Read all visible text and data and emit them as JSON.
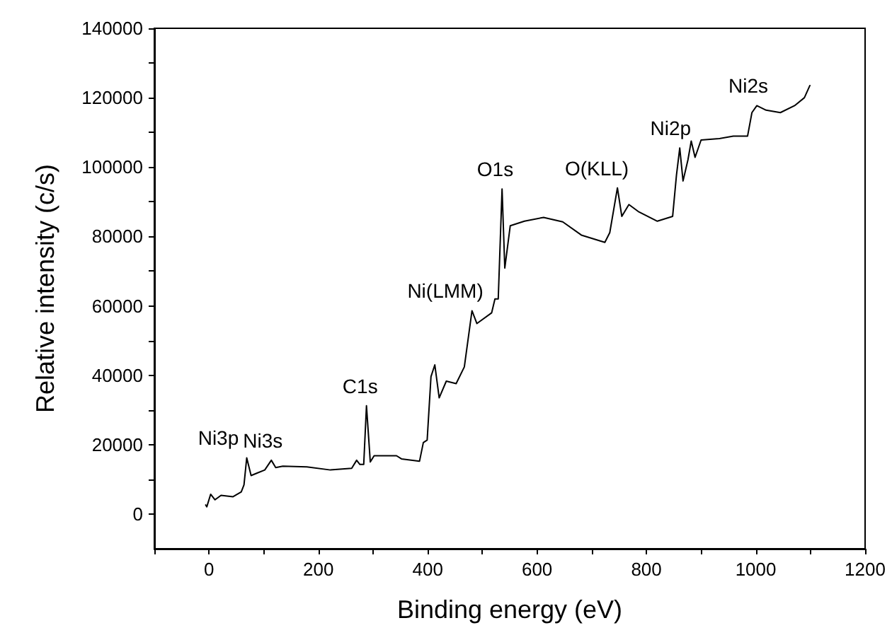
{
  "chart_data": {
    "type": "line",
    "xlabel": "Binding energy (eV)",
    "ylabel": "Relative intensity (c/s)",
    "x": [
      -6,
      -4,
      3,
      11,
      22,
      44,
      59,
      64,
      69,
      77,
      88,
      102,
      114,
      122,
      135,
      179,
      222,
      261,
      270,
      276,
      283,
      288,
      295,
      302,
      343,
      352,
      385,
      392,
      399,
      406,
      413,
      421,
      434,
      452,
      467,
      481,
      490,
      517,
      523,
      529,
      536,
      541,
      551,
      577,
      612,
      647,
      681,
      724,
      733,
      747,
      755,
      768,
      785,
      820,
      848,
      855,
      861,
      867,
      876,
      882,
      889,
      900,
      933,
      959,
      985,
      993,
      1002,
      1019,
      1045,
      1071,
      1089,
      1099
    ],
    "series": [
      {
        "color": "#000000",
        "values": [
          2600,
          2100,
          5700,
          4100,
          5400,
          5000,
          6400,
          8400,
          16200,
          11100,
          11800,
          12700,
          15500,
          13400,
          13800,
          13600,
          12700,
          13200,
          15500,
          14300,
          14300,
          31200,
          15000,
          16800,
          16800,
          15900,
          15200,
          20600,
          21300,
          39600,
          43000,
          33500,
          38300,
          37600,
          42400,
          58600,
          54900,
          58000,
          62000,
          62000,
          93700,
          70900,
          83100,
          84400,
          85500,
          84200,
          80400,
          78300,
          81100,
          94000,
          85800,
          89200,
          87200,
          84400,
          85800,
          97700,
          105500,
          96000,
          102100,
          107500,
          102800,
          107800,
          108200,
          108900,
          108900,
          115700,
          117700,
          116400,
          115700,
          117700,
          120000,
          123500
        ]
      }
    ],
    "xlim": [
      -100,
      1200
    ],
    "xticks": [
      {
        "value": -100,
        "label": null
      },
      0,
      {
        "value": 100,
        "label": null
      },
      200,
      {
        "value": 300,
        "label": null
      },
      400,
      {
        "value": 500,
        "label": null
      },
      600,
      {
        "value": 700,
        "label": null
      },
      800,
      {
        "value": 900,
        "label": null
      },
      1000,
      {
        "value": 1100,
        "label": null
      },
      1200
    ],
    "ylim": [
      -10000,
      140000
    ],
    "yticks": [
      0,
      {
        "value": 10000,
        "label": null
      },
      20000,
      {
        "value": 30000,
        "label": null
      },
      40000,
      {
        "value": 50000,
        "label": null
      },
      60000,
      {
        "value": 70000,
        "label": null
      },
      80000,
      {
        "value": 90000,
        "label": null
      },
      100000,
      {
        "value": 110000,
        "label": null
      },
      120000,
      {
        "value": 130000,
        "label": null
      },
      140000
    ],
    "annotations": [
      {
        "text": "Ni3p",
        "x": 69,
        "y": 16200
      },
      {
        "text": "Ni3s",
        "x": 114,
        "y": 15500
      },
      {
        "text": "C1s",
        "x": 288,
        "y": 31200
      },
      {
        "text": "Ni(LMM)",
        "x": 481,
        "y": 58600
      },
      {
        "text": "O1s",
        "x": 536,
        "y": 93700
      },
      {
        "text": "O(KLL)",
        "x": 747,
        "y": 94000
      },
      {
        "text": "Ni2p",
        "x": 861,
        "y": 105500
      },
      {
        "text": "Ni2s",
        "x": 1002,
        "y": 117700
      }
    ],
    "grid": false,
    "marker": "none",
    "line_style": "solid"
  }
}
